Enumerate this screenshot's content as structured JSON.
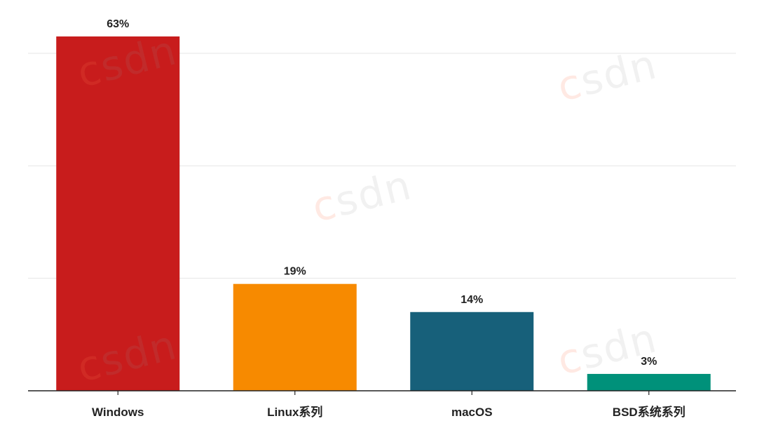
{
  "chart_data": {
    "type": "bar",
    "categories": [
      "Windows",
      "Linux系列",
      "macOS",
      "BSD系统系列"
    ],
    "values": [
      63,
      19,
      14,
      3
    ],
    "value_labels": [
      "63%",
      "19%",
      "14%",
      "3%"
    ],
    "colors": [
      "#c81c1c",
      "#f78a00",
      "#17607a",
      "#00917a"
    ],
    "title": "",
    "xlabel": "",
    "ylabel": "",
    "ylim": [
      0,
      60
    ],
    "grid": true
  },
  "watermark": {
    "text_c": "c",
    "text_rest": "sdn"
  }
}
